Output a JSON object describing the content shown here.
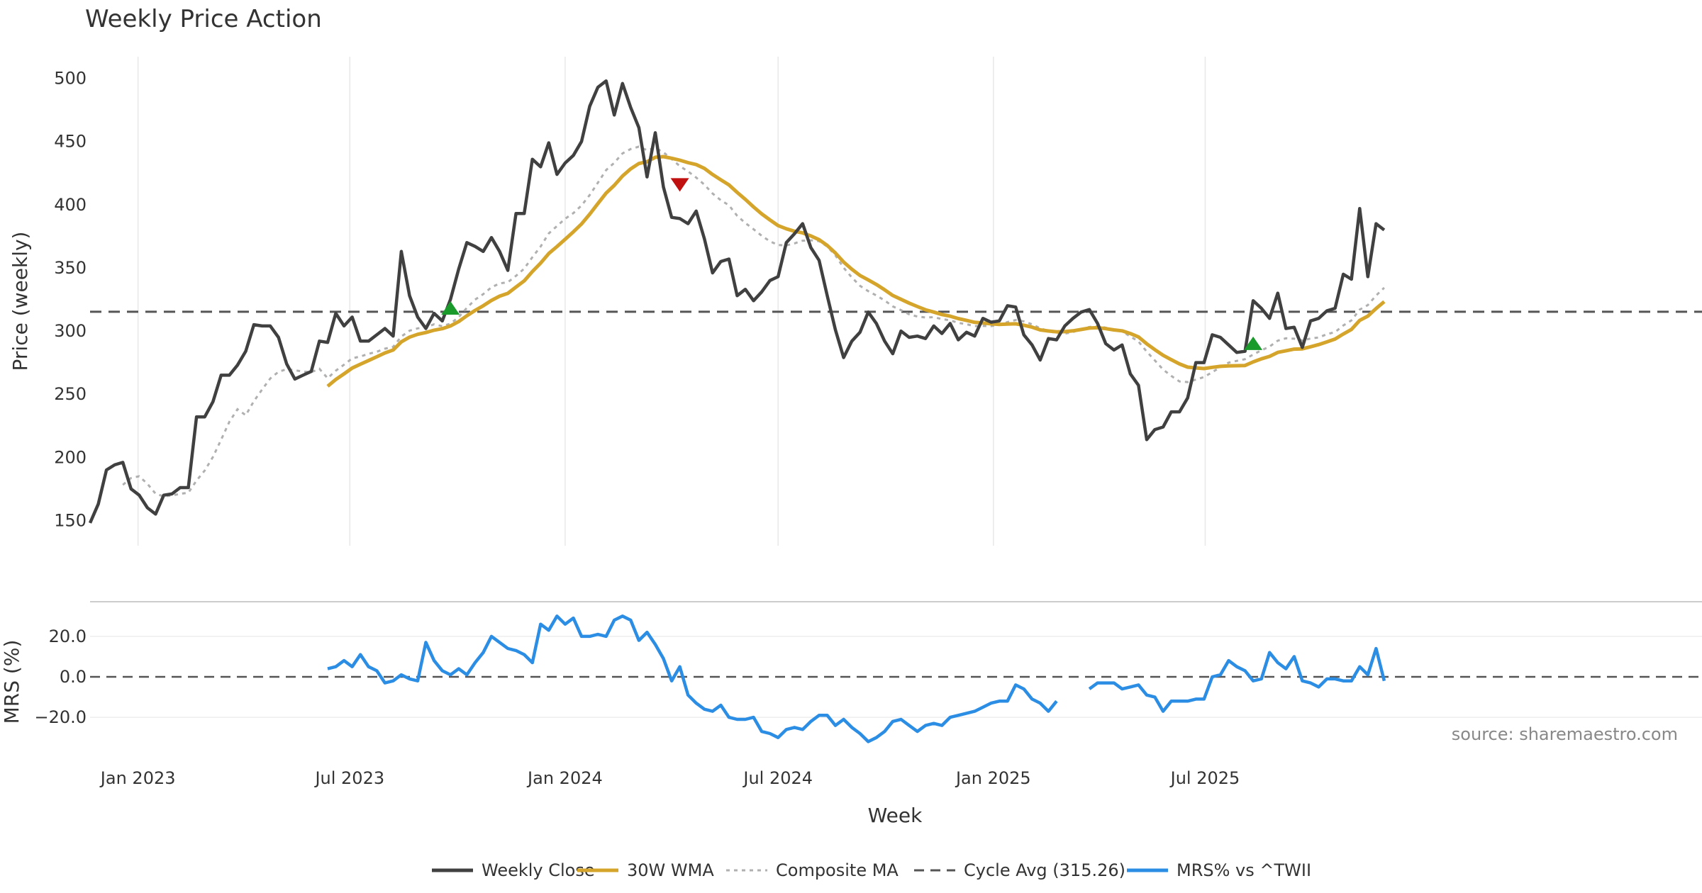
{
  "chart_data": {
    "type": "line",
    "title": "Weekly Price Action",
    "source": "source: sharemaestro.com",
    "xlabel": "Week",
    "x_start": "2022-11-21",
    "x_ticks": [
      {
        "date": "2023-01-01",
        "label": "Jan 2023"
      },
      {
        "date": "2023-07-01",
        "label": "Jul 2023"
      },
      {
        "date": "2024-01-01",
        "label": "Jan 2024"
      },
      {
        "date": "2024-07-01",
        "label": "Jul 2024"
      },
      {
        "date": "2025-01-01",
        "label": "Jan 2025"
      },
      {
        "date": "2025-07-01",
        "label": "Jul 2025"
      }
    ],
    "price_panel": {
      "ylabel": "Price (weekly)",
      "ylim": [
        130,
        520
      ],
      "yticks": [
        150,
        200,
        250,
        300,
        350,
        400,
        450,
        500
      ],
      "cycle_avg": 315.26,
      "weekly_close": [
        148,
        163,
        190,
        194,
        196,
        175,
        170,
        160,
        155,
        170,
        171,
        176,
        176,
        232,
        232,
        244,
        265,
        265,
        273,
        284,
        305,
        304,
        304,
        295,
        274,
        262,
        265,
        268,
        292,
        291,
        314,
        304,
        311,
        292,
        292,
        297,
        302,
        296,
        363,
        328,
        311,
        302,
        314,
        308,
        325,
        349,
        370,
        367,
        363,
        374,
        363,
        348,
        393,
        393,
        436,
        430,
        449,
        424,
        433,
        439,
        450,
        478,
        493,
        498,
        471,
        496,
        477,
        461,
        422,
        457,
        414,
        390,
        389,
        385,
        395,
        373,
        346,
        355,
        357,
        328,
        333,
        324,
        331,
        340,
        343,
        370,
        377,
        385,
        366,
        356,
        328,
        301,
        279,
        292,
        299,
        315,
        306,
        292,
        282,
        300,
        295,
        296,
        294,
        304,
        298,
        306,
        293,
        299,
        296,
        310,
        307,
        308,
        320,
        319,
        297,
        289,
        277,
        294,
        293,
        304,
        310,
        315,
        317,
        306,
        290,
        285,
        289,
        266,
        257,
        214,
        222,
        224,
        236,
        236,
        247,
        275,
        275,
        297,
        295,
        289,
        283,
        284,
        324,
        318,
        310,
        330,
        302,
        303,
        287,
        308,
        310,
        316,
        318,
        345,
        341,
        397,
        343,
        385,
        380
      ],
      "wma30": [
        null,
        null,
        null,
        null,
        null,
        null,
        null,
        null,
        null,
        null,
        null,
        null,
        null,
        null,
        null,
        null,
        null,
        null,
        null,
        null,
        null,
        null,
        null,
        null,
        null,
        null,
        null,
        null,
        null,
        null,
        null,
        null,
        null,
        null,
        null,
        null,
        null,
        null,
        null,
        null,
        null,
        null,
        null,
        null,
        null,
        null,
        null,
        null,
        null,
        null,
        null,
        null,
        null,
        null,
        null,
        null,
        null,
        null,
        null,
        null,
        null,
        null,
        null,
        null,
        null,
        null,
        null,
        null,
        null,
        null,
        null,
        null,
        null,
        null,
        null,
        null,
        null,
        null,
        null,
        null,
        null,
        null,
        null,
        null,
        null,
        null,
        null,
        null,
        null,
        null,
        null,
        null,
        null,
        null,
        null,
        null,
        null,
        null,
        null,
        null,
        null,
        null,
        null,
        null,
        null,
        null,
        null,
        null,
        null,
        null,
        null,
        null,
        null,
        null,
        null,
        null,
        null,
        null,
        null,
        null,
        null,
        null,
        null,
        null,
        null,
        null,
        null,
        null,
        null,
        null,
        null,
        null,
        null,
        null,
        null,
        null,
        null,
        null,
        null,
        null,
        null,
        null,
        null,
        null,
        null,
        null,
        null,
        null,
        null,
        null,
        null,
        null,
        null,
        null,
        null,
        null,
        null,
        null,
        null
      ],
      "composite_ma": [],
      "buy_signals": [
        {
          "week": 44,
          "price": 318
        },
        {
          "week": 142,
          "price": 290
        }
      ],
      "sell_signals": [
        {
          "week": 72,
          "price": 416
        }
      ]
    },
    "mrs_panel": {
      "ylabel": "MRS (%)",
      "ylim": [
        -35,
        35
      ],
      "yticks": [
        {
          "value": 20,
          "label": "20.0"
        },
        {
          "value": 0,
          "label": "0.0"
        },
        {
          "value": -20,
          "label": "−20.0"
        }
      ],
      "values": [
        null,
        null,
        null,
        null,
        null,
        null,
        null,
        null,
        null,
        null,
        null,
        null,
        null,
        null,
        null,
        null,
        null,
        null,
        null,
        null,
        null,
        null,
        null,
        null,
        null,
        null,
        null,
        null,
        null,
        null,
        null,
        null,
        null,
        null,
        null,
        null,
        null,
        null,
        null,
        null,
        null,
        null,
        null,
        null,
        null,
        null,
        null,
        null,
        null,
        null,
        null,
        null,
        null,
        null,
        null,
        null,
        null,
        null,
        null,
        null,
        null,
        null,
        null,
        null,
        null,
        null,
        null,
        null,
        null,
        null,
        null,
        null,
        null,
        null,
        null,
        null,
        null,
        null,
        null,
        null,
        null,
        null,
        null,
        null,
        null,
        null,
        null,
        null,
        null,
        null,
        null,
        null,
        null,
        null,
        null,
        null,
        null,
        null,
        null,
        null,
        null,
        null,
        null,
        null,
        null,
        null,
        null,
        null,
        null,
        null,
        null,
        null,
        null,
        null,
        null,
        null,
        null,
        null,
        null,
        null,
        null,
        null,
        null,
        null,
        null,
        null,
        null,
        null,
        null,
        null,
        null,
        null,
        null,
        null,
        null,
        null,
        null,
        null,
        null,
        null,
        null,
        null,
        null,
        null,
        null,
        null,
        null,
        null,
        null,
        null,
        null,
        null,
        null,
        null,
        null,
        null,
        null,
        null,
        null
      ]
    },
    "legend": {
      "placement": "bottom-center",
      "items": [
        {
          "label": "Weekly Close",
          "style": "solid",
          "color": "#404040"
        },
        {
          "label": "30W WMA",
          "style": "solid",
          "color": "#d4a52a"
        },
        {
          "label": "Composite MA",
          "style": "dotted",
          "color": "#b0b0b0"
        },
        {
          "label": "Cycle Avg (315.26)",
          "style": "dashed",
          "color": "#555555"
        },
        {
          "label": "MRS% vs ^TWII",
          "style": "solid",
          "color": "#2b8de3"
        }
      ]
    },
    "colors": {
      "close": "#404040",
      "wma": "#d4a52a",
      "composite": "#b0b0b0",
      "cycle": "#555555",
      "mrs": "#2b8de3",
      "buy": "#1a9a2a",
      "sell": "#c01010",
      "grid": "#e8e8e8"
    },
    "grid": true
  }
}
